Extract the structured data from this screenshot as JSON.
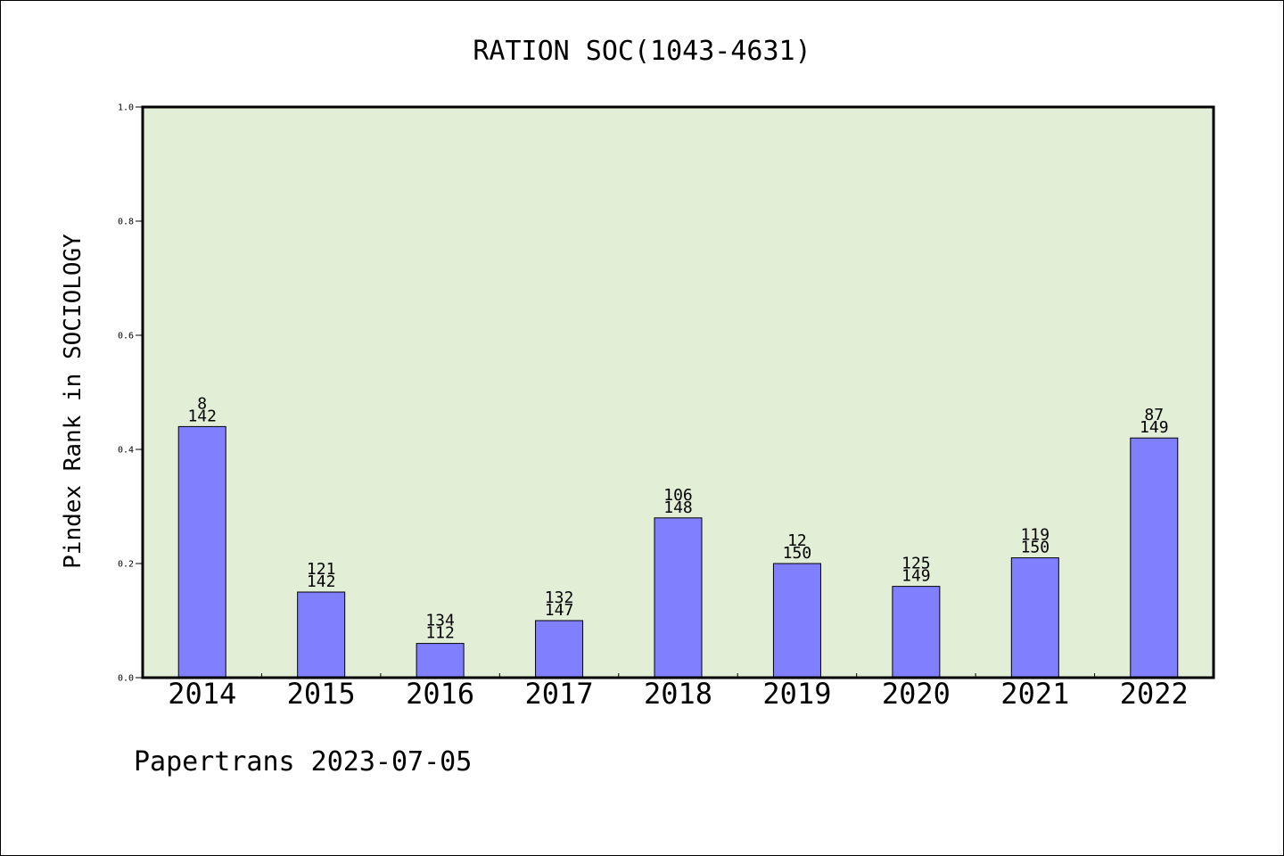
{
  "chart_data": {
    "type": "bar",
    "title": "RATION SOC(1043-4631)",
    "ylabel": "Pindex Rank in SOCIOLOGY",
    "xlabel": "",
    "ylim": [
      0.0,
      1.0
    ],
    "yticks": [
      "0.0",
      "0.2",
      "0.4",
      "0.6",
      "0.8",
      "1.0"
    ],
    "categories": [
      "2014",
      "2015",
      "2016",
      "2017",
      "2018",
      "2019",
      "2020",
      "2021",
      "2022"
    ],
    "values": [
      0.44,
      0.15,
      0.06,
      0.1,
      0.28,
      0.2,
      0.16,
      0.21,
      0.42
    ],
    "label_top": [
      "8",
      "121",
      "134",
      "132",
      "106",
      "12",
      "125",
      "119",
      "87"
    ],
    "label_bottom": [
      "142",
      "142",
      "112",
      "147",
      "148",
      "150",
      "149",
      "150",
      "149"
    ],
    "grid": false,
    "legend": "none",
    "colors": {
      "plot_background": "#e2efd6",
      "bar_fill": "#8080ff",
      "bar_edge": "#000000"
    }
  },
  "footer": "Papertrans 2023-07-05"
}
